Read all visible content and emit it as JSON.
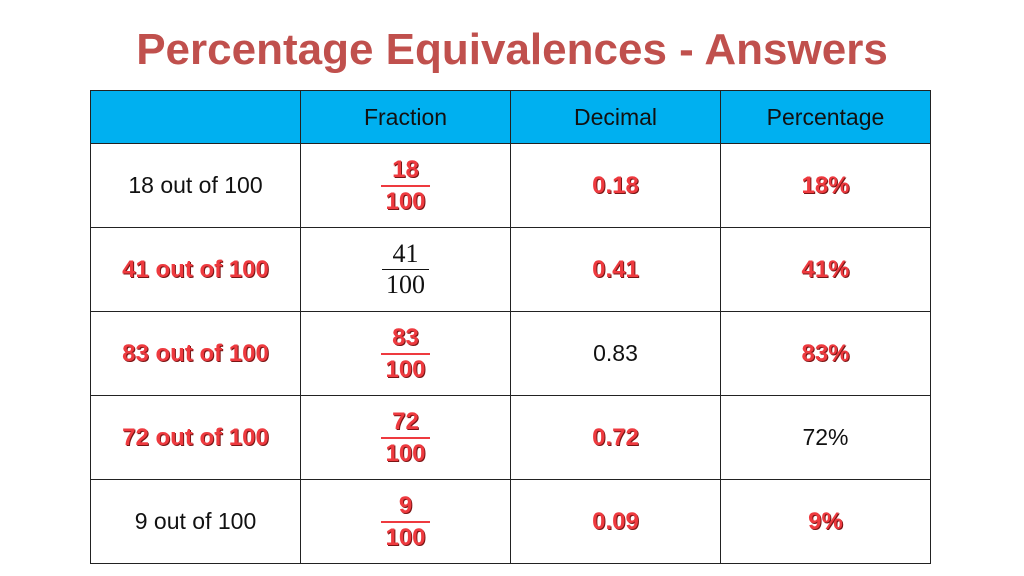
{
  "title": "Percentage Equivalences - Answers",
  "table": {
    "header": [
      "Fraction",
      "Decimal",
      "Percentage"
    ],
    "rows": [
      {
        "words": "18 out of 100",
        "fraction": {
          "numerator": "18",
          "denominator": "100"
        },
        "decimal": "0.18",
        "percentage": "18%"
      },
      {
        "words": "41 out of 100",
        "fraction": {
          "numerator": "41",
          "denominator": "100"
        },
        "decimal": "0.41",
        "percentage": "41%"
      },
      {
        "words": "83 out of 100",
        "fraction": {
          "numerator": "83",
          "denominator": "100"
        },
        "decimal": "0.83",
        "percentage": "83%"
      },
      {
        "words": "72 out of 100",
        "fraction": {
          "numerator": "72",
          "denominator": "100"
        },
        "decimal": "0.72",
        "percentage": "72%"
      },
      {
        "words": "9 out of 100",
        "fraction": {
          "numerator": "9",
          "denominator": "100"
        },
        "decimal": "0.09",
        "percentage": "9%"
      }
    ]
  }
}
